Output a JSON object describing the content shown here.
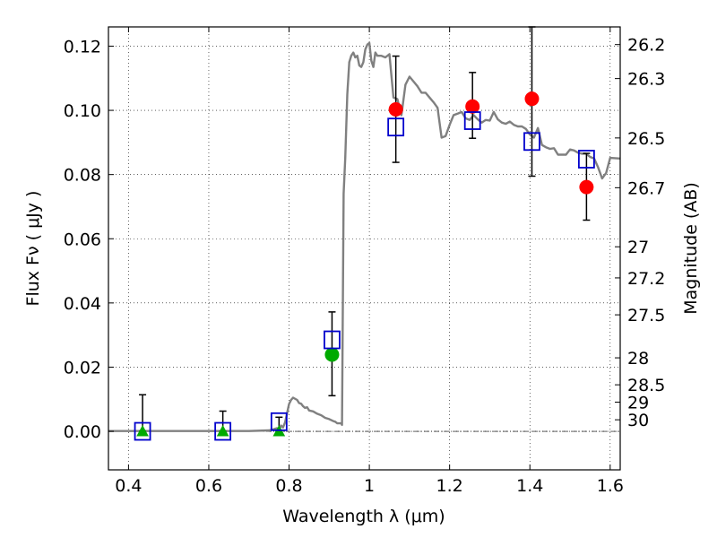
{
  "chart_data": {
    "type": "scatter",
    "xlabel": "Wavelength  λ (μm)",
    "ylabel": "Flux  Fν  ( μJy )",
    "y2label": "Magnitude (AB)",
    "xlim": [
      0.35,
      1.625
    ],
    "ylim": [
      -0.012,
      0.126
    ],
    "xticks": [
      {
        "v": 0.4,
        "label": "0.4"
      },
      {
        "v": 0.6,
        "label": "0.6"
      },
      {
        "v": 0.8,
        "label": "0.8"
      },
      {
        "v": 1.0,
        "label": "1"
      },
      {
        "v": 1.2,
        "label": "1.2"
      },
      {
        "v": 1.4,
        "label": "1.4"
      },
      {
        "v": 1.6,
        "label": "1.6"
      }
    ],
    "yticks": [
      {
        "v": 0.0,
        "label": "0.00"
      },
      {
        "v": 0.02,
        "label": "0.02"
      },
      {
        "v": 0.04,
        "label": "0.04"
      },
      {
        "v": 0.06,
        "label": "0.06"
      },
      {
        "v": 0.08,
        "label": "0.08"
      },
      {
        "v": 0.1,
        "label": "0.10"
      },
      {
        "v": 0.12,
        "label": "0.12"
      }
    ],
    "magnitude_ticks": [
      {
        "flux": 0.1205,
        "label": "26.2"
      },
      {
        "flux": 0.1099,
        "label": "26.3"
      },
      {
        "flux": 0.0914,
        "label": "26.5"
      },
      {
        "flux": 0.0759,
        "label": "26.7"
      },
      {
        "flux": 0.0575,
        "label": "27"
      },
      {
        "flux": 0.0478,
        "label": "27.2"
      },
      {
        "flux": 0.0363,
        "label": "27.5"
      },
      {
        "flux": 0.0229,
        "label": "28"
      },
      {
        "flux": 0.0145,
        "label": "28.5"
      },
      {
        "flux": 0.0091,
        "label": "29"
      },
      {
        "flux": 0.0036,
        "label": "30"
      }
    ],
    "grid": true,
    "zero_line": true,
    "colors": {
      "model": "#808080",
      "model_points": "#0000cc",
      "detections": "#ff0000",
      "upper_limits": "#00aa00",
      "marginal": "#00aa00",
      "errorbar": "#000000"
    },
    "series": [
      {
        "style": "line",
        "points": [
          [
            0.35,
            0.0001
          ],
          [
            0.45,
            0.0001
          ],
          [
            0.55,
            0.0001
          ],
          [
            0.65,
            0.0001
          ],
          [
            0.7,
            0.0001
          ],
          [
            0.75,
            0.0003
          ],
          [
            0.76,
            0.0006
          ],
          [
            0.77,
            0.001
          ],
          [
            0.775,
            0.0005
          ],
          [
            0.78,
            0.0018
          ],
          [
            0.785,
            0.0012
          ],
          [
            0.79,
            0.0028
          ],
          [
            0.8,
            0.0085
          ],
          [
            0.805,
            0.0098
          ],
          [
            0.81,
            0.0105
          ],
          [
            0.82,
            0.0098
          ],
          [
            0.825,
            0.0088
          ],
          [
            0.83,
            0.0086
          ],
          [
            0.835,
            0.0078
          ],
          [
            0.84,
            0.0073
          ],
          [
            0.845,
            0.0075
          ],
          [
            0.85,
            0.0065
          ],
          [
            0.86,
            0.0062
          ],
          [
            0.87,
            0.0055
          ],
          [
            0.88,
            0.005
          ],
          [
            0.89,
            0.0042
          ],
          [
            0.9,
            0.0038
          ],
          [
            0.91,
            0.0032
          ],
          [
            0.915,
            0.003
          ],
          [
            0.92,
            0.0025
          ],
          [
            0.93,
            0.0025
          ],
          [
            0.932,
            0.002
          ],
          [
            0.936,
            0.074
          ],
          [
            0.94,
            0.085
          ],
          [
            0.945,
            0.105
          ],
          [
            0.95,
            0.115
          ],
          [
            0.955,
            0.117
          ],
          [
            0.96,
            0.118
          ],
          [
            0.965,
            0.1165
          ],
          [
            0.97,
            0.117
          ],
          [
            0.975,
            0.114
          ],
          [
            0.98,
            0.1135
          ],
          [
            0.985,
            0.115
          ],
          [
            0.99,
            0.119
          ],
          [
            0.995,
            0.1205
          ],
          [
            1.0,
            0.121
          ],
          [
            1.005,
            0.1155
          ],
          [
            1.01,
            0.1135
          ],
          [
            1.015,
            0.118
          ],
          [
            1.02,
            0.117
          ],
          [
            1.03,
            0.117
          ],
          [
            1.04,
            0.1165
          ],
          [
            1.05,
            0.1175
          ],
          [
            1.06,
            0.104
          ],
          [
            1.07,
            0.1035
          ],
          [
            1.08,
            0.0985
          ],
          [
            1.09,
            0.108
          ],
          [
            1.1,
            0.1105
          ],
          [
            1.11,
            0.109
          ],
          [
            1.12,
            0.1075
          ],
          [
            1.13,
            0.1055
          ],
          [
            1.14,
            0.1055
          ],
          [
            1.15,
            0.104
          ],
          [
            1.16,
            0.1025
          ],
          [
            1.17,
            0.1008
          ],
          [
            1.18,
            0.0915
          ],
          [
            1.19,
            0.092
          ],
          [
            1.2,
            0.0955
          ],
          [
            1.21,
            0.0985
          ],
          [
            1.22,
            0.099
          ],
          [
            1.23,
            0.0995
          ],
          [
            1.24,
            0.0975
          ],
          [
            1.25,
            0.097
          ],
          [
            1.26,
            0.0985
          ],
          [
            1.27,
            0.0972
          ],
          [
            1.28,
            0.0962
          ],
          [
            1.29,
            0.097
          ],
          [
            1.3,
            0.0968
          ],
          [
            1.31,
            0.0995
          ],
          [
            1.32,
            0.0972
          ],
          [
            1.33,
            0.0962
          ],
          [
            1.34,
            0.0958
          ],
          [
            1.35,
            0.0965
          ],
          [
            1.36,
            0.0955
          ],
          [
            1.37,
            0.095
          ],
          [
            1.38,
            0.095
          ],
          [
            1.39,
            0.0942
          ],
          [
            1.4,
            0.0925
          ],
          [
            1.41,
            0.0915
          ],
          [
            1.42,
            0.0945
          ],
          [
            1.43,
            0.0892
          ],
          [
            1.44,
            0.0885
          ],
          [
            1.45,
            0.088
          ],
          [
            1.46,
            0.0882
          ],
          [
            1.47,
            0.0862
          ],
          [
            1.48,
            0.0862
          ],
          [
            1.49,
            0.0862
          ],
          [
            1.5,
            0.0878
          ],
          [
            1.51,
            0.0875
          ],
          [
            1.52,
            0.0868
          ],
          [
            1.53,
            0.0865
          ],
          [
            1.54,
            0.0865
          ],
          [
            1.55,
            0.0855
          ],
          [
            1.56,
            0.085
          ],
          [
            1.57,
            0.0822
          ],
          [
            1.58,
            0.0788
          ],
          [
            1.59,
            0.0805
          ],
          [
            1.6,
            0.0852
          ],
          [
            1.625,
            0.085
          ]
        ]
      },
      {
        "style": "open-square",
        "points": [
          [
            0.435,
            0.0
          ],
          [
            0.635,
            0.0
          ],
          [
            0.775,
            0.003
          ],
          [
            0.907,
            0.0285
          ],
          [
            1.066,
            0.0948
          ],
          [
            1.257,
            0.0968
          ],
          [
            1.405,
            0.0903
          ],
          [
            1.541,
            0.0848
          ]
        ]
      },
      {
        "style": "filled-circle",
        "points": [
          {
            "x": 1.066,
            "y": 0.1003,
            "lo": 0.0838,
            "hi": 0.1169
          },
          {
            "x": 1.257,
            "y": 0.1012,
            "lo": 0.0913,
            "hi": 0.1118
          },
          {
            "x": 1.405,
            "y": 0.1036,
            "lo": 0.0795,
            "hi": 0.126
          },
          {
            "x": 1.541,
            "y": 0.0761,
            "lo": 0.0658,
            "hi": 0.0866
          }
        ]
      },
      {
        "style": "triangle",
        "points": [
          {
            "x": 0.435,
            "y": 0.0,
            "lo": 0.0,
            "hi": 0.0114
          },
          {
            "x": 0.635,
            "y": 0.0,
            "lo": 0.0,
            "hi": 0.0063
          },
          {
            "x": 0.775,
            "y": 0.0,
            "lo": 0.0,
            "hi": 0.0044
          }
        ]
      },
      {
        "style": "filled-circle-green",
        "points": [
          {
            "x": 0.907,
            "y": 0.0239,
            "lo": 0.0111,
            "hi": 0.0372
          }
        ]
      }
    ]
  }
}
